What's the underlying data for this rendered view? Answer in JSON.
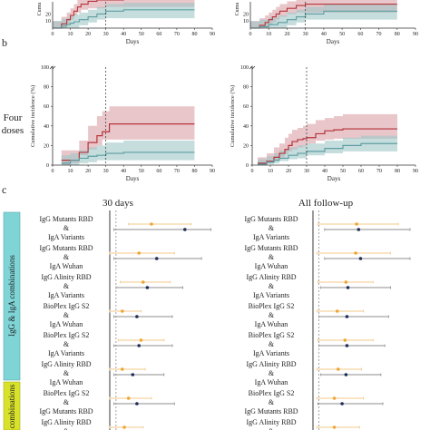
{
  "panel_labels": {
    "b": "b",
    "c": "c"
  },
  "row_label": [
    "Four",
    "doses"
  ],
  "group_labels": [
    "IgG & IgA combinations",
    "combinations"
  ],
  "column_titles": [
    "30 days",
    "All follow-up"
  ],
  "colors": {
    "red_line": "#b5343a",
    "red_band": "#d9a0a6",
    "teal_line": "#5f9ea3",
    "teal_band": "#9fc6c7",
    "orange": "#f0a535",
    "navy": "#1d2e58",
    "gray_bar": "#8c8c8c",
    "cyan_box": "#7fd4d6",
    "yellow_box": "#d8e22a"
  },
  "chart_data": [
    {
      "type": "area",
      "panel": "a-left",
      "xlabel": "Days",
      "xlim": [
        0,
        90
      ],
      "xticks": [
        0,
        10,
        20,
        30,
        40,
        50,
        60,
        70,
        80,
        90
      ],
      "ylabel": "Cumu",
      "yticks": [
        10,
        20
      ],
      "series": [
        {
          "x": [
            0,
            5,
            8,
            10,
            12,
            14,
            16,
            20,
            25,
            30,
            40,
            50,
            60,
            70,
            80
          ],
          "values": [
            0,
            6,
            12,
            18,
            24,
            30,
            34,
            38,
            40,
            40,
            42,
            42,
            42,
            42,
            42
          ]
        },
        {
          "x": [
            0,
            5,
            8,
            10,
            12,
            15,
            20,
            25,
            30,
            40,
            50,
            60,
            70,
            80
          ],
          "values": [
            0,
            3,
            5,
            7,
            9,
            12,
            16,
            20,
            24,
            26,
            26,
            26,
            26,
            26
          ]
        }
      ]
    },
    {
      "type": "area",
      "panel": "a-right",
      "xlabel": "Days",
      "xlim": [
        0,
        90
      ],
      "xticks": [
        0,
        10,
        20,
        30,
        40,
        50,
        60,
        70,
        80,
        90
      ],
      "ylabel": "Cumu",
      "yticks": [
        10,
        20
      ],
      "series": [
        {
          "x": [
            0,
            5,
            8,
            10,
            12,
            14,
            16,
            20,
            25,
            30,
            40,
            50,
            60,
            70,
            80
          ],
          "values": [
            0,
            4,
            8,
            12,
            16,
            20,
            24,
            28,
            32,
            34,
            34,
            34,
            34,
            34,
            34
          ]
        },
        {
          "x": [
            0,
            5,
            10,
            15,
            20,
            25,
            30,
            40,
            50,
            60,
            70,
            80
          ],
          "values": [
            0,
            2,
            5,
            8,
            12,
            16,
            20,
            24,
            24,
            24,
            24,
            24
          ]
        }
      ]
    },
    {
      "type": "area",
      "panel": "b-left",
      "xlabel": "Days",
      "ylabel": "Cumulative incidence (%)",
      "xlim": [
        0,
        90
      ],
      "ylim": [
        0,
        100
      ],
      "xticks": [
        0,
        10,
        20,
        30,
        40,
        50,
        60,
        70,
        80,
        90
      ],
      "yticks": [
        0,
        20,
        40,
        60,
        80,
        100
      ],
      "vline": 30,
      "series": [
        {
          "x": [
            5,
            10,
            15,
            20,
            25,
            28,
            32,
            40,
            50,
            60,
            70,
            80
          ],
          "values": [
            5,
            5,
            13,
            23,
            30,
            34,
            42,
            42,
            42,
            42,
            42,
            42
          ],
          "lower": [
            0,
            0,
            2,
            10,
            16,
            20,
            26,
            26,
            26,
            26,
            26,
            26
          ],
          "upper": [
            15,
            15,
            25,
            40,
            50,
            55,
            60,
            60,
            60,
            60,
            60,
            60
          ]
        },
        {
          "x": [
            5,
            10,
            15,
            20,
            25,
            30,
            40,
            50,
            60,
            70,
            80
          ],
          "values": [
            2,
            5,
            7,
            9,
            10,
            12,
            13,
            13,
            13,
            13,
            13
          ],
          "lower": [
            0,
            0,
            0,
            2,
            3,
            5,
            5,
            5,
            5,
            5,
            5
          ],
          "upper": [
            10,
            12,
            15,
            18,
            20,
            23,
            25,
            25,
            25,
            25,
            25
          ]
        }
      ]
    },
    {
      "type": "area",
      "panel": "b-right",
      "xlabel": "Days",
      "ylabel": "Cumulative incidence (%)",
      "xlim": [
        0,
        90
      ],
      "ylim": [
        0,
        100
      ],
      "xticks": [
        0,
        10,
        20,
        30,
        40,
        50,
        60,
        70,
        80,
        90
      ],
      "yticks": [
        0,
        20,
        40,
        60,
        80,
        100
      ],
      "vline": 30,
      "series": [
        {
          "x": [
            3,
            8,
            12,
            15,
            18,
            20,
            22,
            25,
            28,
            30,
            35,
            40,
            45,
            50,
            60,
            70,
            80
          ],
          "values": [
            2,
            4,
            8,
            12,
            16,
            20,
            24,
            26,
            27,
            28,
            32,
            35,
            36,
            37,
            37,
            37,
            37
          ],
          "lower": [
            0,
            0,
            2,
            5,
            8,
            11,
            14,
            16,
            18,
            19,
            22,
            25,
            26,
            27,
            27,
            27,
            27
          ],
          "upper": [
            8,
            12,
            18,
            22,
            28,
            32,
            36,
            38,
            40,
            42,
            46,
            48,
            50,
            52,
            52,
            52,
            52
          ]
        },
        {
          "x": [
            3,
            8,
            12,
            15,
            20,
            25,
            30,
            40,
            50,
            60,
            70,
            80
          ],
          "values": [
            1,
            3,
            5,
            7,
            10,
            12,
            14,
            17,
            20,
            22,
            22,
            22
          ],
          "lower": [
            0,
            0,
            1,
            2,
            4,
            6,
            7,
            10,
            12,
            14,
            14,
            14
          ],
          "upper": [
            6,
            9,
            12,
            15,
            18,
            20,
            22,
            25,
            28,
            30,
            30,
            30
          ]
        }
      ]
    },
    {
      "type": "scatter",
      "panel": "c-30days",
      "title": "30 days",
      "categories": [
        [
          "IgG Mutants RBD",
          "&",
          "IgA Variants"
        ],
        [
          "IgG Mutants RBD",
          "&",
          "IgA Wuhan"
        ],
        [
          "IgG Alinity RBD",
          "&",
          "IgA Variants"
        ],
        [
          "BioPlex IgG S2",
          "&",
          "IgA Wuhan"
        ],
        [
          "BioPlex IgG S2",
          "&",
          "IgA Variants"
        ],
        [
          "IgG Alinity RBD",
          "&",
          "IgA Wuhan"
        ],
        [
          "BioPlex IgG S2",
          "&",
          "IgG Mutants RBD"
        ],
        [
          "IgG Alinity RBD",
          "&",
          ""
        ]
      ],
      "xlim": [
        0,
        1
      ],
      "reference_line": 0.06,
      "series": [
        {
          "values": [
            0.4,
            0.28,
            0.32,
            0.12,
            0.3,
            0.12,
            0.18,
            0.14
          ],
          "lower": [
            0.18,
            0.0,
            0.1,
            0.0,
            0.08,
            0.0,
            0.0,
            0.0
          ],
          "upper": [
            0.78,
            0.62,
            0.58,
            0.3,
            0.52,
            0.34,
            0.4,
            0.32
          ]
        },
        {
          "values": [
            0.72,
            0.45,
            0.36,
            0.26,
            0.28,
            0.22,
            0.26,
            0.18
          ],
          "lower": [
            0.04,
            0.04,
            0.06,
            0.04,
            0.04,
            0.04,
            0.04,
            0.04
          ],
          "upper": [
            0.97,
            0.88,
            0.7,
            0.6,
            0.6,
            0.52,
            0.62,
            0.5
          ]
        }
      ]
    },
    {
      "type": "scatter",
      "panel": "c-all",
      "title": "All follow-up",
      "categories": [
        [
          "IgG Mutants RBD",
          "&",
          "IgA Variants"
        ],
        [
          "IgG Mutants RBD",
          "&",
          "IgA Wuhan"
        ],
        [
          "IgG Alinity RBD",
          "&",
          "IgA Variants"
        ],
        [
          "BioPlex IgG S2",
          "&",
          "IgA Wuhan"
        ],
        [
          "BioPlex IgG S2",
          "&",
          "IgA Variants"
        ],
        [
          "IgG Alinity RBD",
          "&",
          "IgA Wuhan"
        ],
        [
          "BioPlex IgG S2",
          "&",
          "IgG Mutants RBD"
        ],
        [
          "IgG Alinity RBD",
          "&",
          ""
        ]
      ],
      "xlim": [
        0,
        1
      ],
      "reference_line": 0.06,
      "series": [
        {
          "values": [
            0.45,
            0.44,
            0.34,
            0.25,
            0.33,
            0.26,
            0.22,
            0.22
          ],
          "lower": [
            0.05,
            0.04,
            0.05,
            0.04,
            0.05,
            0.04,
            0.04,
            0.04
          ],
          "upper": [
            0.88,
            0.8,
            0.62,
            0.52,
            0.62,
            0.5,
            0.52,
            0.48
          ]
        },
        {
          "values": [
            0.47,
            0.49,
            0.36,
            0.35,
            0.35,
            0.34,
            0.3,
            0.26
          ],
          "lower": [
            0.12,
            0.12,
            0.08,
            0.06,
            0.06,
            0.08,
            0.05,
            0.05
          ],
          "upper": [
            1.0,
            1.0,
            0.8,
            0.78,
            0.74,
            0.7,
            0.72,
            0.64
          ]
        }
      ]
    }
  ]
}
